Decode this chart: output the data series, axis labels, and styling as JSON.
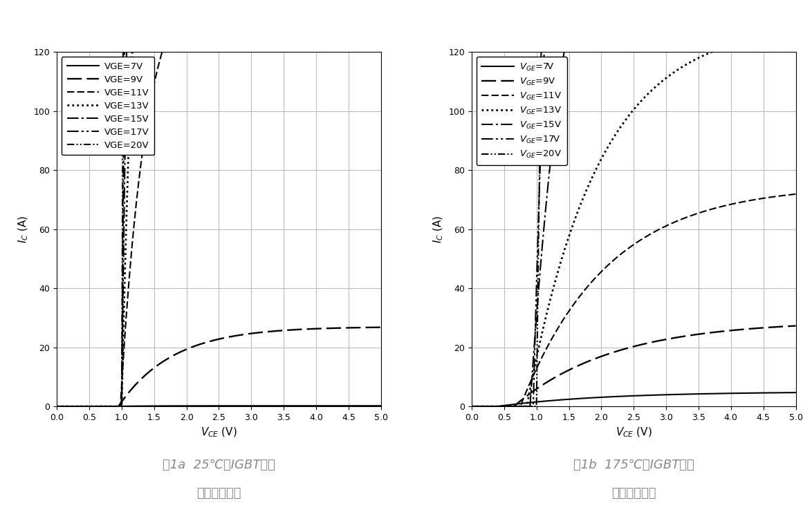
{
  "fig1a_title": "图1a  25℃下IGBT典型\n输出特性曲线",
  "fig1b_title": "图1b  175℃下IGBT典型\n输出特性曲线",
  "xlabel": "$V_{CE}$ (V)",
  "ylabel": "$I_C$ (A)",
  "xlim": [
    0.0,
    5.0
  ],
  "ylim": [
    0,
    120
  ],
  "xticks": [
    0.0,
    0.5,
    1.0,
    1.5,
    2.0,
    2.5,
    3.0,
    3.5,
    4.0,
    4.5,
    5.0
  ],
  "yticks": [
    0,
    20,
    40,
    60,
    80,
    100,
    120
  ],
  "legend_labels_1": [
    "VGE=7V",
    "VGE=9V",
    "VGE=11V",
    "VGE=13V",
    "VGE=15V",
    "VGE=17V",
    "VGE=20V"
  ],
  "legend_labels_2": [
    "$V_{GE}$=7V",
    "$V_{GE}$=9V",
    "$V_{GE}$=11V",
    "$V_{GE}$=13V",
    "$V_{GE}$=15V",
    "$V_{GE}$=17V",
    "$V_{GE}$=20V"
  ],
  "background_color": "#ffffff",
  "grid_color": "#bbbbbb",
  "text_color": "#888888",
  "title_fontsize": 13,
  "label_fontsize": 11,
  "tick_fontsize": 9,
  "legend_fontsize": 9.5
}
